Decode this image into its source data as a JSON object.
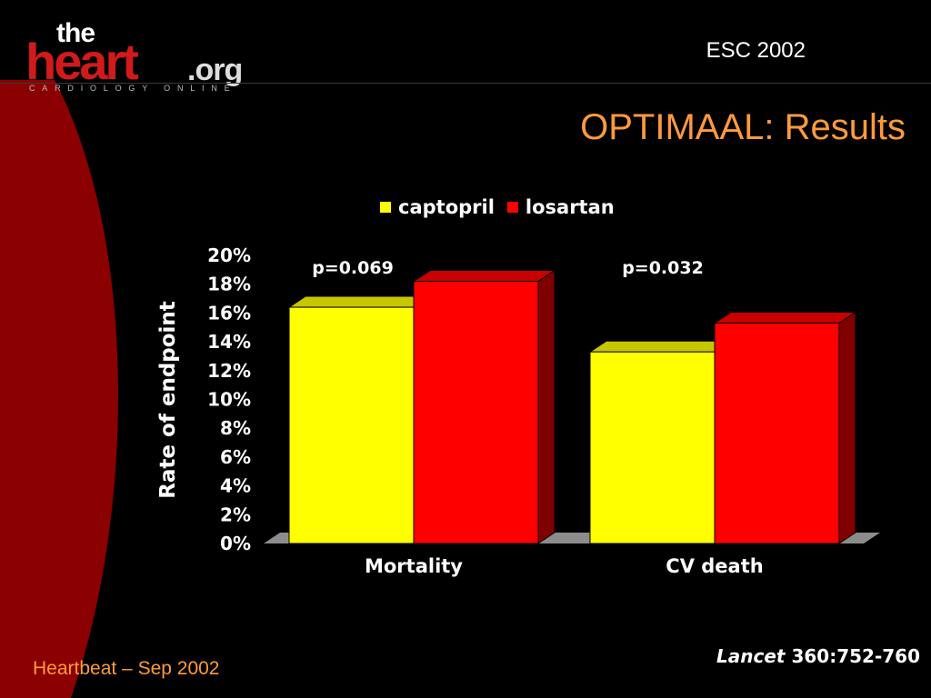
{
  "header": {
    "logo": {
      "the": "the",
      "heart": "heart",
      "org": ".org",
      "tagline": "CARDIOLOGY ONLINE"
    },
    "event": "ESC 2002",
    "title": "OPTIMAAL: Results"
  },
  "footer": {
    "left": "Heartbeat – Sep  2002",
    "citation_journal": "Lancet",
    "citation_ref": " 360:752-760"
  },
  "colors": {
    "background": "#000000",
    "accent_orange": "#ff9a3c",
    "arc_red": "#8b0000",
    "captopril": "#ffff00",
    "losartan": "#ff0000"
  },
  "chart_data": {
    "type": "bar",
    "categories": [
      "Mortality",
      "CV death"
    ],
    "series": [
      {
        "name": "captopril",
        "values": [
          16.4,
          13.3
        ],
        "color": "#ffff00"
      },
      {
        "name": "losartan",
        "values": [
          18.2,
          15.3
        ],
        "color": "#ff0000"
      }
    ],
    "ylabel": "Rate of endpoint",
    "ylim": [
      0,
      20
    ],
    "yticks": [
      "0%",
      "2%",
      "4%",
      "6%",
      "8%",
      "10%",
      "12%",
      "14%",
      "16%",
      "18%",
      "20%"
    ],
    "annotations": [
      "p=0.069",
      "p=0.032"
    ],
    "legend_position": "top",
    "grid": false
  }
}
